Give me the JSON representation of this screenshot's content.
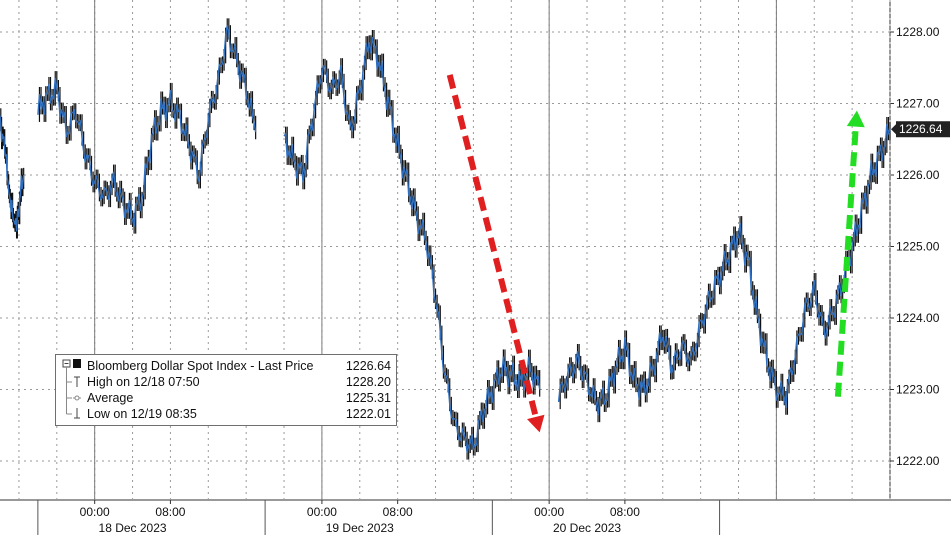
{
  "chart_data": {
    "type": "line",
    "series_style": "OHLC candlestick (black bars with blue close line)",
    "y_axis": {
      "position": "right",
      "ticks": [
        "1222.00",
        "1223.00",
        "1224.00",
        "1225.00",
        "1226.00",
        "1227.00",
        "1228.00"
      ],
      "ylim": [
        1221.5,
        1228.5
      ]
    },
    "x_axis": {
      "time_ticks": [
        "00:00",
        "08:00",
        "00:00",
        "08:00",
        "00:00",
        "08:00"
      ],
      "day_labels": [
        "18 Dec 2023",
        "19 Dec 2023",
        "20 Dec 2023"
      ],
      "xlim_hours": [
        -10,
        84
      ]
    },
    "series": [
      {
        "name": "Bloomberg Dollar Spot Index - Last Price",
        "last_value_label": "1226.64",
        "segments": [
          {
            "x": [
              -10,
              -9.5,
              -9,
              -8.5,
              -8,
              -7.5
            ],
            "y": [
              1226.8,
              1226.3,
              1225.8,
              1225.2,
              1225.6,
              1226.0
            ]
          },
          {
            "x": [
              -6,
              -5,
              -4,
              -3,
              -2,
              -1,
              0,
              1,
              2,
              3,
              4,
              5,
              6,
              7,
              8,
              9,
              10,
              11,
              12,
              13,
              14,
              15,
              16,
              17
            ],
            "y": [
              1226.9,
              1227.1,
              1227.2,
              1226.6,
              1226.9,
              1226.3,
              1225.9,
              1225.7,
              1225.9,
              1225.6,
              1225.4,
              1225.7,
              1226.5,
              1226.9,
              1227.0,
              1226.8,
              1226.4,
              1226.0,
              1226.8,
              1227.3,
              1228.0,
              1227.6,
              1227.2,
              1226.6
            ]
          },
          {
            "x": [
              20,
              21,
              22,
              23,
              24,
              25,
              26,
              27,
              28,
              29,
              30,
              31,
              32,
              33,
              34,
              35,
              36,
              37,
              38,
              39,
              40,
              41,
              42,
              43,
              44,
              45,
              46,
              47
            ],
            "y": [
              1226.5,
              1226.2,
              1226.0,
              1226.8,
              1227.5,
              1227.2,
              1227.4,
              1226.6,
              1227.2,
              1227.9,
              1227.6,
              1227.0,
              1226.4,
              1225.9,
              1225.4,
              1225.1,
              1224.3,
              1223.2,
              1222.5,
              1222.3,
              1222.2,
              1222.7,
              1223.0,
              1223.3,
              1223.2,
              1223.1,
              1223.3,
              1223.0
            ]
          },
          {
            "x": [
              49,
              50,
              51,
              52,
              53,
              54,
              55,
              56,
              57,
              58,
              59,
              60,
              61,
              62,
              63,
              64,
              65,
              66,
              67,
              68,
              69,
              70,
              71,
              72,
              73,
              74,
              75,
              76,
              77,
              78,
              79,
              80,
              81,
              82,
              83,
              84
            ],
            "y": [
              1222.9,
              1223.2,
              1223.4,
              1223.1,
              1222.8,
              1222.9,
              1223.3,
              1223.6,
              1223.1,
              1223.0,
              1223.3,
              1223.8,
              1223.3,
              1223.6,
              1223.4,
              1223.9,
              1224.3,
              1224.6,
              1224.9,
              1225.2,
              1224.8,
              1224.0,
              1223.4,
              1223.0,
              1222.9,
              1223.5,
              1224.1,
              1224.4,
              1223.8,
              1224.1,
              1224.5,
              1225.0,
              1225.5,
              1226.0,
              1226.3,
              1226.64
            ]
          }
        ]
      }
    ],
    "legend": {
      "position": "bottom-left",
      "rows": [
        {
          "label": "Bloomberg Dollar Spot Index - Last Price",
          "value": "1226.64"
        },
        {
          "label": "High on 12/18 07:50",
          "value": "1228.20"
        },
        {
          "label": "Average",
          "value": "1225.31"
        },
        {
          "label": "Low on 12/19 08:35",
          "value": "1222.01"
        }
      ]
    },
    "annotations": [
      {
        "type": "arrow",
        "style": "dashed",
        "color": "#e02020",
        "direction": "down",
        "from": {
          "x": 37.5,
          "y": 1227.4
        },
        "to": {
          "x": 47,
          "y": 1222.4
        }
      },
      {
        "type": "arrow",
        "style": "dashed",
        "color": "#22dd22",
        "direction": "up",
        "from": {
          "x": 78.5,
          "y": 1222.9
        },
        "to": {
          "x": 80.5,
          "y": 1226.9
        }
      }
    ],
    "grid": true,
    "colors": {
      "price_line": "#2f6fbf",
      "bars": "#111111",
      "grid": "#9a9a9a",
      "down_arrow": "#e02020",
      "up_arrow": "#22dd22",
      "last_price_tag_bg": "#222222",
      "last_price_tag_text": "#ffffff"
    }
  }
}
